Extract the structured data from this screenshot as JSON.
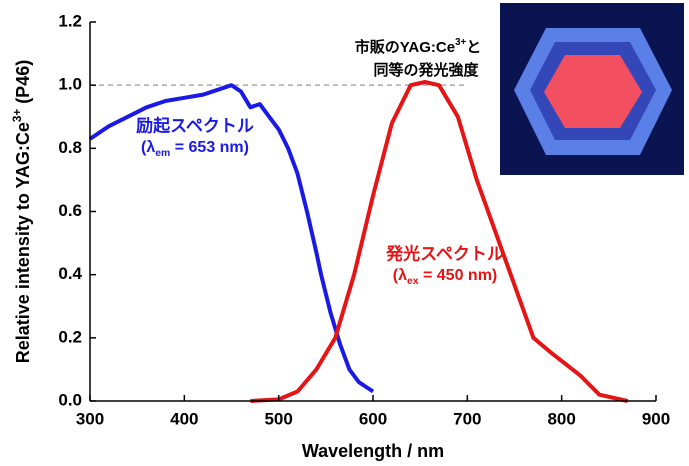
{
  "chart_data": {
    "type": "line",
    "xlabel": "Wavelength / nm",
    "ylabel": [
      "Relative intensity to YAG:Ce",
      "3+",
      " (P46)"
    ],
    "xlim": [
      300,
      900
    ],
    "xticks": [
      300,
      400,
      500,
      600,
      700,
      800,
      900
    ],
    "ylim": [
      0,
      1.2
    ],
    "yticks": [
      {
        "value": 0,
        "label": "0.0"
      },
      0.2,
      0.4,
      0.6,
      0.8,
      {
        "value": 1,
        "label": "1.0"
      },
      1.2
    ],
    "reference_line": {
      "y": 1,
      "x": [
        300,
        700
      ],
      "color": "#aaaaaa"
    },
    "series": [
      {
        "color": "#1a1ae6",
        "x": [
          300,
          320,
          340,
          360,
          380,
          400,
          420,
          440,
          450,
          460,
          470,
          480,
          490,
          500,
          510,
          520,
          530,
          540,
          545,
          555,
          565,
          575,
          585,
          600
        ],
        "values": [
          0.83,
          0.87,
          0.9,
          0.93,
          0.95,
          0.96,
          0.97,
          0.99,
          1.0,
          0.98,
          0.93,
          0.94,
          0.9,
          0.86,
          0.8,
          0.72,
          0.6,
          0.47,
          0.4,
          0.28,
          0.18,
          0.1,
          0.06,
          0.03
        ]
      },
      {
        "color": "#e61414",
        "x": [
          470,
          500,
          520,
          540,
          560,
          580,
          600,
          620,
          640,
          655,
          670,
          690,
          710,
          740,
          770,
          790,
          820,
          840,
          870
        ],
        "values": [
          0,
          0.005,
          0.03,
          0.1,
          0.2,
          0.4,
          0.65,
          0.88,
          1.0,
          1.01,
          1.0,
          0.9,
          0.7,
          0.45,
          0.2,
          0.15,
          0.08,
          0.02,
          0
        ]
      }
    ],
    "annotations": [
      {
        "text": "励起スペクトル",
        "formula": [
          "(λ",
          "em",
          " = 653 nm)"
        ],
        "color": "#1a1ae6"
      },
      {
        "text": "発光スペクトル",
        "formula": [
          "(λ",
          "ex",
          " = 450 nm)"
        ],
        "color": "#e61414"
      }
    ],
    "note": {
      "line1": [
        "市販のYAG:Ce",
        "3+",
        "と"
      ],
      "line2": "同等の発光強度"
    }
  }
}
